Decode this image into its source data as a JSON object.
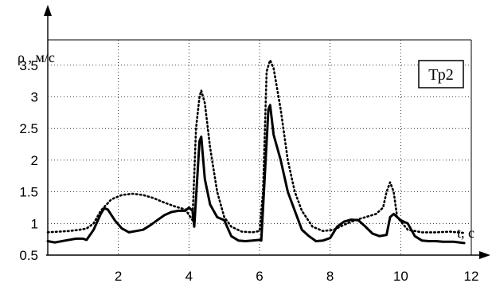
{
  "chart_data": {
    "type": "line",
    "ylabel": "ρ , м/с",
    "xlabel": "t, c",
    "legend_box": "Тр2",
    "xlim": [
      0,
      12
    ],
    "ylim": [
      0.5,
      3.9
    ],
    "x_ticks": [
      {
        "value": 2,
        "label": "2"
      },
      {
        "value": 4,
        "label": "4"
      },
      {
        "value": 6,
        "label": "6"
      },
      {
        "value": 8,
        "label": "8"
      },
      {
        "value": 10,
        "label": "10"
      },
      {
        "value": 12,
        "label": "12"
      }
    ],
    "y_ticks": [
      {
        "value": 0.5,
        "label": "0.5"
      },
      {
        "value": 1,
        "label": "1"
      },
      {
        "value": 1.5,
        "label": "1.5"
      },
      {
        "value": 2,
        "label": "2"
      },
      {
        "value": 2.5,
        "label": "2.5"
      },
      {
        "value": 3,
        "label": "3"
      },
      {
        "value": 3.5,
        "label": "3.5"
      }
    ],
    "grid": "dotted",
    "series": [
      {
        "style": "solid",
        "points": [
          [
            0,
            0.72
          ],
          [
            0.2,
            0.7
          ],
          [
            0.5,
            0.73
          ],
          [
            0.8,
            0.76
          ],
          [
            1.0,
            0.76
          ],
          [
            1.1,
            0.74
          ],
          [
            1.3,
            0.9
          ],
          [
            1.5,
            1.15
          ],
          [
            1.6,
            1.24
          ],
          [
            1.7,
            1.22
          ],
          [
            1.9,
            1.05
          ],
          [
            2.1,
            0.92
          ],
          [
            2.3,
            0.86
          ],
          [
            2.5,
            0.88
          ],
          [
            2.7,
            0.9
          ],
          [
            2.9,
            0.97
          ],
          [
            3.1,
            1.05
          ],
          [
            3.3,
            1.13
          ],
          [
            3.5,
            1.18
          ],
          [
            3.7,
            1.2
          ],
          [
            3.9,
            1.2
          ],
          [
            4.0,
            1.25
          ],
          [
            4.1,
            1.2
          ],
          [
            4.15,
            0.95
          ],
          [
            4.3,
            2.3
          ],
          [
            4.35,
            2.37
          ],
          [
            4.45,
            1.7
          ],
          [
            4.6,
            1.3
          ],
          [
            4.8,
            1.1
          ],
          [
            5.0,
            1.05
          ],
          [
            5.2,
            0.8
          ],
          [
            5.4,
            0.73
          ],
          [
            5.6,
            0.72
          ],
          [
            5.8,
            0.73
          ],
          [
            6.0,
            0.74
          ],
          [
            6.05,
            0.73
          ],
          [
            6.25,
            2.8
          ],
          [
            6.3,
            2.87
          ],
          [
            6.4,
            2.4
          ],
          [
            6.6,
            2.0
          ],
          [
            6.8,
            1.5
          ],
          [
            7.0,
            1.2
          ],
          [
            7.2,
            0.9
          ],
          [
            7.4,
            0.8
          ],
          [
            7.6,
            0.72
          ],
          [
            7.8,
            0.73
          ],
          [
            8.0,
            0.77
          ],
          [
            8.2,
            0.95
          ],
          [
            8.4,
            1.03
          ],
          [
            8.6,
            1.06
          ],
          [
            8.8,
            1.05
          ],
          [
            9.0,
            0.95
          ],
          [
            9.2,
            0.84
          ],
          [
            9.4,
            0.8
          ],
          [
            9.6,
            0.82
          ],
          [
            9.7,
            1.1
          ],
          [
            9.8,
            1.15
          ],
          [
            10.0,
            1.05
          ],
          [
            10.2,
            1.0
          ],
          [
            10.4,
            0.8
          ],
          [
            10.6,
            0.73
          ],
          [
            10.8,
            0.72
          ],
          [
            11.0,
            0.72
          ],
          [
            11.2,
            0.71
          ],
          [
            11.5,
            0.71
          ],
          [
            11.8,
            0.69
          ]
        ]
      },
      {
        "style": "dotted",
        "points": [
          [
            0,
            0.86
          ],
          [
            0.3,
            0.87
          ],
          [
            0.6,
            0.88
          ],
          [
            0.9,
            0.9
          ],
          [
            1.1,
            0.92
          ],
          [
            1.3,
            1.0
          ],
          [
            1.5,
            1.2
          ],
          [
            1.8,
            1.38
          ],
          [
            2.1,
            1.45
          ],
          [
            2.4,
            1.47
          ],
          [
            2.7,
            1.45
          ],
          [
            3.0,
            1.4
          ],
          [
            3.3,
            1.33
          ],
          [
            3.6,
            1.27
          ],
          [
            3.9,
            1.22
          ],
          [
            4.1,
            1.05
          ],
          [
            4.2,
            2.5
          ],
          [
            4.3,
            3.0
          ],
          [
            4.35,
            3.1
          ],
          [
            4.45,
            2.9
          ],
          [
            4.6,
            2.2
          ],
          [
            4.8,
            1.5
          ],
          [
            5.0,
            1.1
          ],
          [
            5.2,
            0.95
          ],
          [
            5.5,
            0.87
          ],
          [
            5.8,
            0.86
          ],
          [
            6.0,
            0.88
          ],
          [
            6.1,
            1.5
          ],
          [
            6.2,
            3.4
          ],
          [
            6.3,
            3.58
          ],
          [
            6.4,
            3.45
          ],
          [
            6.6,
            2.8
          ],
          [
            6.8,
            2.0
          ],
          [
            7.0,
            1.5
          ],
          [
            7.2,
            1.2
          ],
          [
            7.5,
            0.95
          ],
          [
            7.8,
            0.88
          ],
          [
            8.1,
            0.9
          ],
          [
            8.4,
            0.98
          ],
          [
            8.7,
            1.05
          ],
          [
            9.0,
            1.1
          ],
          [
            9.3,
            1.15
          ],
          [
            9.5,
            1.25
          ],
          [
            9.6,
            1.5
          ],
          [
            9.7,
            1.65
          ],
          [
            9.8,
            1.5
          ],
          [
            9.9,
            1.1
          ],
          [
            10.2,
            0.9
          ],
          [
            10.6,
            0.86
          ],
          [
            11.0,
            0.86
          ],
          [
            11.4,
            0.87
          ],
          [
            11.8,
            0.85
          ]
        ]
      }
    ]
  }
}
